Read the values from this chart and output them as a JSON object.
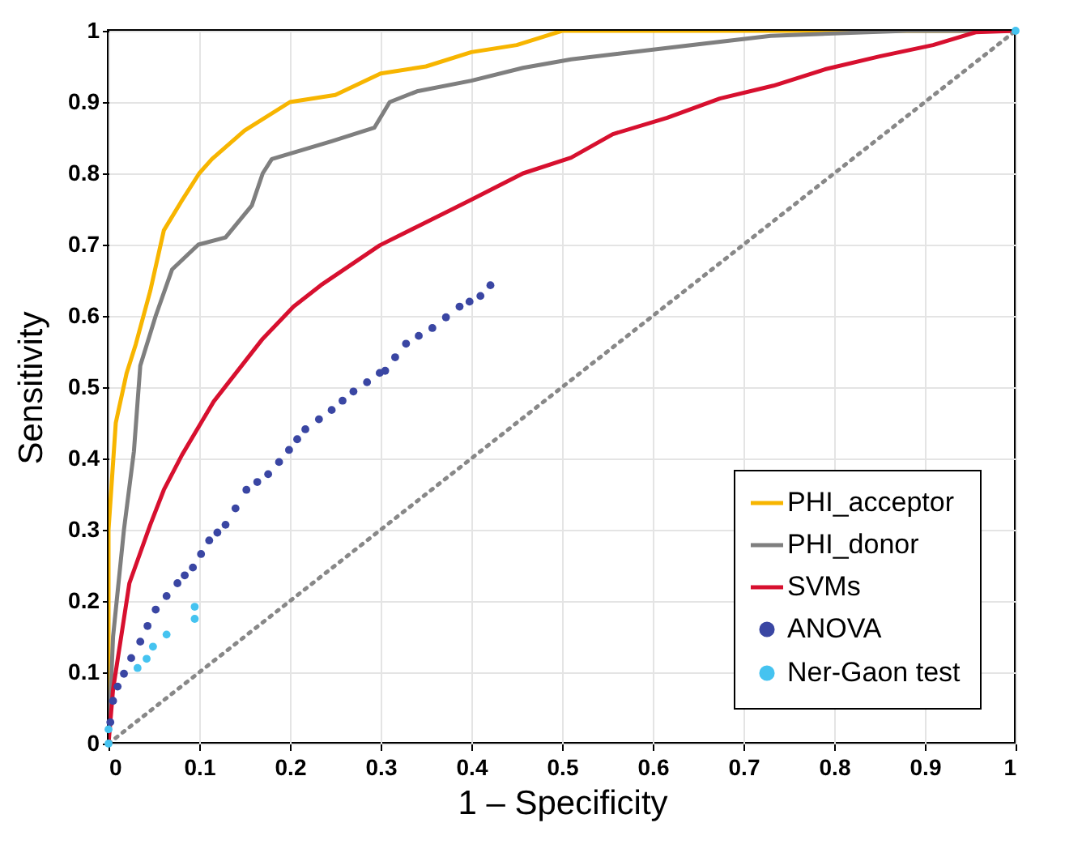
{
  "chart_data": {
    "type": "line",
    "xlabel": "1 – Specificity",
    "ylabel": "Sensitivity",
    "xlim": [
      0,
      1
    ],
    "ylim": [
      0,
      1
    ],
    "xticks": [
      0,
      0.1,
      0.2,
      0.3,
      0.4,
      0.5,
      0.6,
      0.7,
      0.8,
      0.9,
      1
    ],
    "yticks": [
      0,
      0.1,
      0.2,
      0.3,
      0.4,
      0.5,
      0.6,
      0.7,
      0.8,
      0.9,
      1
    ],
    "grid": true,
    "legend": "bottom right",
    "series": [
      {
        "name": "PHI_acceptor",
        "color": "#f7b500",
        "x": [
          0,
          0,
          0.008,
          0.02,
          0.03,
          0.046,
          0.061,
          0.08,
          0.1,
          0.114,
          0.15,
          0.2,
          0.25,
          0.3,
          0.35,
          0.4,
          0.45,
          0.475,
          0.5,
          1
        ],
        "values": [
          0,
          0.3,
          0.45,
          0.52,
          0.56,
          0.635,
          0.72,
          0.76,
          0.8,
          0.82,
          0.86,
          0.9,
          0.91,
          0.94,
          0.95,
          0.97,
          0.98,
          0.99,
          1,
          1
        ]
      },
      {
        "name": "PHI_donor",
        "color": "#7f7f7f",
        "x": [
          0,
          0.005,
          0.017,
          0.028,
          0.035,
          0.052,
          0.07,
          0.099,
          0.129,
          0.158,
          0.17,
          0.18,
          0.246,
          0.293,
          0.31,
          0.34,
          0.4,
          0.457,
          0.51,
          0.644,
          0.73,
          0.88,
          1
        ],
        "values": [
          0,
          0.15,
          0.3,
          0.41,
          0.53,
          0.6,
          0.665,
          0.7,
          0.71,
          0.755,
          0.8,
          0.82,
          0.845,
          0.864,
          0.9,
          0.915,
          0.93,
          0.948,
          0.96,
          0.98,
          0.993,
          1,
          1
        ]
      },
      {
        "name": "SVMs",
        "color": "#d7102f",
        "x": [
          0,
          0.005,
          0.023,
          0.046,
          0.061,
          0.081,
          0.116,
          0.17,
          0.204,
          0.234,
          0.299,
          0.34,
          0.4,
          0.457,
          0.51,
          0.556,
          0.616,
          0.674,
          0.733,
          0.79,
          0.85,
          0.909,
          0.956,
          1
        ],
        "values": [
          0,
          0.076,
          0.225,
          0.307,
          0.356,
          0.405,
          0.48,
          0.568,
          0.613,
          0.643,
          0.699,
          0.725,
          0.763,
          0.8,
          0.822,
          0.855,
          0.878,
          0.905,
          0.923,
          0.946,
          0.964,
          0.98,
          0.998,
          1
        ]
      },
      {
        "name": "ANOVA",
        "type": "scatter",
        "marker": "circle",
        "color": "#3a46a3",
        "x": [
          0.002,
          0.005,
          0.01,
          0.017,
          0.025,
          0.035,
          0.043,
          0.052,
          0.064,
          0.076,
          0.084,
          0.093,
          0.102,
          0.111,
          0.12,
          0.129,
          0.14,
          0.152,
          0.164,
          0.176,
          0.188,
          0.199,
          0.208,
          0.217,
          0.232,
          0.246,
          0.258,
          0.27,
          0.285,
          0.299,
          0.305,
          0.316,
          0.328,
          0.342,
          0.357,
          0.372,
          0.387,
          0.398,
          0.41,
          0.421
        ],
        "values": [
          0.03,
          0.06,
          0.08,
          0.098,
          0.12,
          0.143,
          0.165,
          0.188,
          0.207,
          0.225,
          0.236,
          0.247,
          0.266,
          0.285,
          0.296,
          0.307,
          0.33,
          0.356,
          0.367,
          0.378,
          0.395,
          0.412,
          0.427,
          0.441,
          0.455,
          0.468,
          0.481,
          0.494,
          0.507,
          0.52,
          0.523,
          0.542,
          0.561,
          0.572,
          0.583,
          0.598,
          0.613,
          0.62,
          0.628,
          0.643
        ]
      },
      {
        "name": "Ner-Gaon test",
        "type": "scatter",
        "marker": "circle",
        "color": "#45c3f0",
        "x": [
          0,
          0,
          0.032,
          0.042,
          0.049,
          0.064,
          0.095,
          0.095,
          1
        ],
        "values": [
          0,
          0.02,
          0.106,
          0.119,
          0.136,
          0.153,
          0.175,
          0.192,
          1
        ]
      },
      {
        "color": "#888888",
        "line_style": "dotted",
        "x": [
          0,
          1
        ],
        "values": [
          0,
          1
        ]
      }
    ]
  }
}
